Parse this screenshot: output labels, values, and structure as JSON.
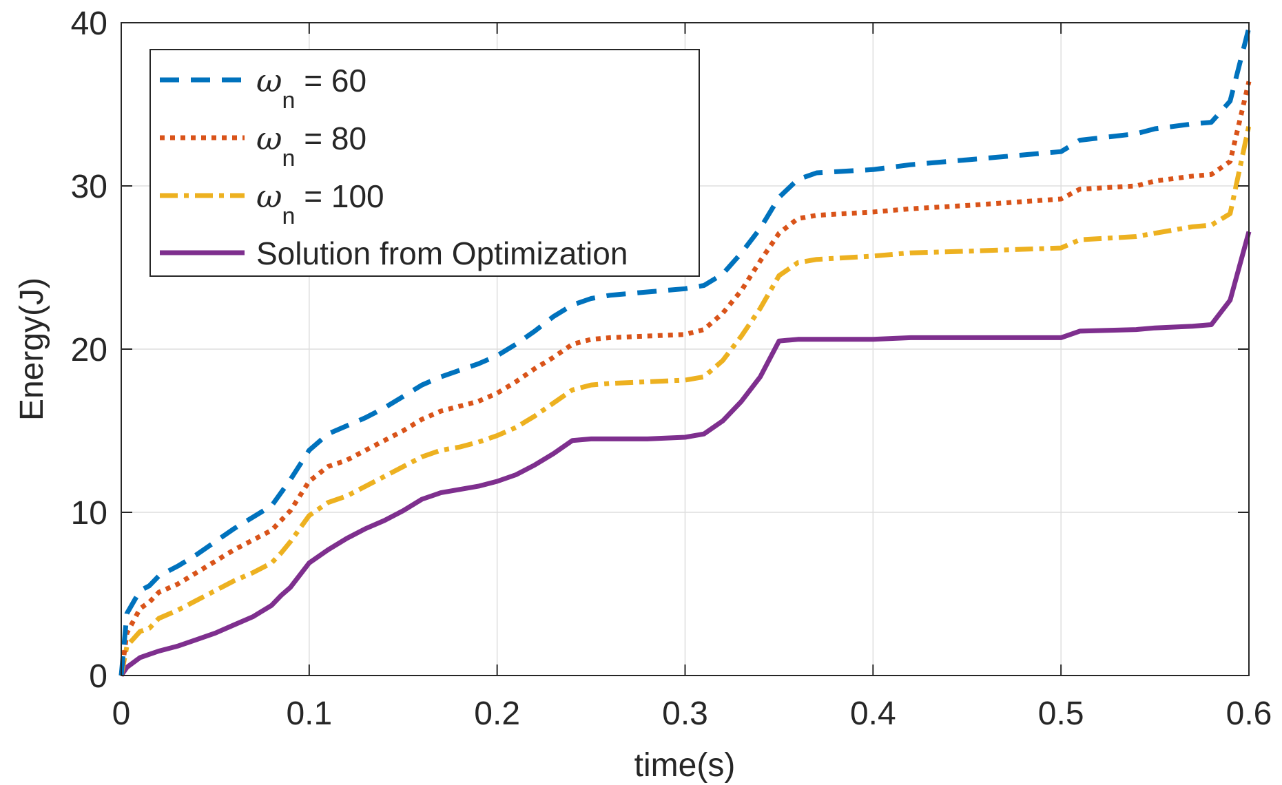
{
  "chart_data": {
    "type": "line",
    "title": "",
    "xlabel": "time(s)",
    "ylabel": "Energy(J)",
    "xlim": [
      0,
      0.6
    ],
    "ylim": [
      0,
      40
    ],
    "xticks": [
      0,
      0.1,
      0.2,
      0.3,
      0.4,
      0.5,
      0.6
    ],
    "xtick_labels": [
      "0",
      "0.1",
      "0.2",
      "0.3",
      "0.4",
      "0.5",
      "0.6"
    ],
    "yticks": [
      0,
      10,
      20,
      30,
      40
    ],
    "ytick_labels": [
      "0",
      "10",
      "20",
      "30",
      "40"
    ],
    "grid": true,
    "legend_position": "top-left",
    "x": [
      0,
      0.003,
      0.01,
      0.015,
      0.02,
      0.03,
      0.04,
      0.05,
      0.06,
      0.07,
      0.08,
      0.085,
      0.09,
      0.1,
      0.11,
      0.12,
      0.13,
      0.14,
      0.15,
      0.16,
      0.17,
      0.18,
      0.19,
      0.2,
      0.21,
      0.22,
      0.23,
      0.24,
      0.25,
      0.26,
      0.28,
      0.3,
      0.31,
      0.32,
      0.33,
      0.34,
      0.35,
      0.36,
      0.37,
      0.4,
      0.42,
      0.45,
      0.5,
      0.51,
      0.54,
      0.55,
      0.57,
      0.58,
      0.59,
      0.6
    ],
    "series": [
      {
        "name": "ω = 60",
        "name_symbol": "ω",
        "name_subscript": "n",
        "name_suffix": " = 60",
        "color": "#0072BD",
        "style": "dashed",
        "values": [
          0,
          3.8,
          5.2,
          5.5,
          6.1,
          6.7,
          7.4,
          8.2,
          9.0,
          9.7,
          10.4,
          11.2,
          12.0,
          13.8,
          14.8,
          15.3,
          15.8,
          16.4,
          17.1,
          17.8,
          18.3,
          18.7,
          19.1,
          19.6,
          20.3,
          21.1,
          22.0,
          22.7,
          23.1,
          23.3,
          23.5,
          23.7,
          23.9,
          24.6,
          25.9,
          27.4,
          29.3,
          30.4,
          30.8,
          31.0,
          31.3,
          31.6,
          32.1,
          32.8,
          33.2,
          33.5,
          33.8,
          33.9,
          35.2,
          39.7
        ]
      },
      {
        "name": "ω = 80",
        "name_symbol": "ω",
        "name_subscript": "n",
        "name_suffix": " = 80",
        "color": "#D95319",
        "style": "dotted",
        "values": [
          0,
          2.6,
          4.1,
          4.5,
          5.1,
          5.6,
          6.3,
          7.0,
          7.7,
          8.3,
          8.9,
          9.5,
          10.1,
          11.9,
          12.8,
          13.2,
          13.8,
          14.4,
          15.0,
          15.7,
          16.2,
          16.5,
          16.8,
          17.3,
          18.0,
          18.8,
          19.5,
          20.3,
          20.6,
          20.7,
          20.8,
          20.9,
          21.2,
          22.2,
          23.6,
          25.4,
          27.1,
          28.0,
          28.2,
          28.4,
          28.6,
          28.8,
          29.2,
          29.8,
          30.0,
          30.3,
          30.6,
          30.7,
          31.5,
          36.4
        ]
      },
      {
        "name": "ω = 100",
        "name_symbol": "ω",
        "name_subscript": "n",
        "name_suffix": " = 100",
        "color": "#EDB120",
        "style": "dashdot",
        "values": [
          0,
          1.8,
          2.7,
          2.9,
          3.5,
          4.0,
          4.6,
          5.2,
          5.8,
          6.3,
          6.9,
          7.5,
          8.2,
          9.8,
          10.6,
          11.0,
          11.6,
          12.2,
          12.8,
          13.4,
          13.8,
          14.0,
          14.3,
          14.7,
          15.2,
          15.9,
          16.7,
          17.5,
          17.8,
          17.9,
          18.0,
          18.1,
          18.3,
          19.3,
          20.8,
          22.5,
          24.5,
          25.3,
          25.5,
          25.7,
          25.9,
          26.0,
          26.2,
          26.7,
          26.9,
          27.1,
          27.5,
          27.6,
          28.3,
          33.7
        ]
      },
      {
        "name": "Solution from Optimization",
        "name_symbol": "",
        "name_subscript": "",
        "name_suffix": "Solution from Optimization",
        "color": "#7E2F8E",
        "style": "solid",
        "values": [
          0,
          0.5,
          1.1,
          1.3,
          1.5,
          1.8,
          2.2,
          2.6,
          3.1,
          3.6,
          4.3,
          4.9,
          5.4,
          6.9,
          7.7,
          8.4,
          9.0,
          9.5,
          10.1,
          10.8,
          11.2,
          11.4,
          11.6,
          11.9,
          12.3,
          12.9,
          13.6,
          14.4,
          14.5,
          14.5,
          14.5,
          14.6,
          14.8,
          15.6,
          16.8,
          18.3,
          20.5,
          20.6,
          20.6,
          20.6,
          20.7,
          20.7,
          20.7,
          21.1,
          21.2,
          21.3,
          21.4,
          21.5,
          23.0,
          27.2
        ]
      }
    ]
  }
}
